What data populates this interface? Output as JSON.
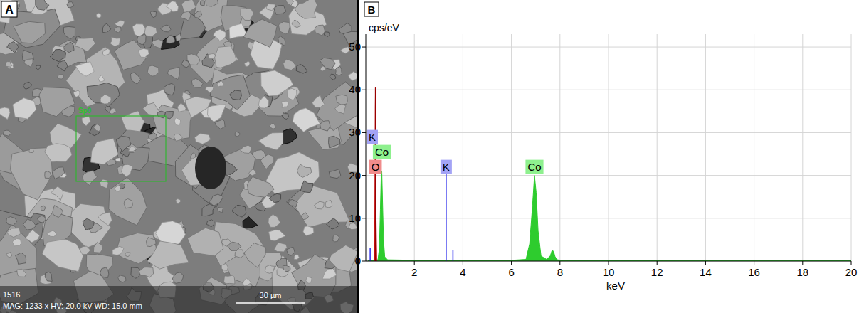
{
  "chart_data": {
    "type": "line",
    "panel_label": "B",
    "y_label": "cps/eV",
    "x_label": "keV",
    "xlim": [
      0,
      20
    ],
    "xticks": [
      2,
      4,
      6,
      8,
      10,
      12,
      14,
      16,
      18,
      20
    ],
    "ylim": [
      0,
      53
    ],
    "yticks": [
      0,
      10,
      20,
      30,
      40,
      50
    ],
    "grid": true,
    "series": [
      {
        "name": "Co",
        "color": "#2ecc2e",
        "type": "area",
        "x": [
          0.1,
          0.5,
          0.56,
          0.6,
          0.63,
          0.66,
          0.69,
          0.73,
          0.78,
          0.9,
          1.0,
          2.0,
          3.0,
          4.0,
          5.0,
          6.0,
          6.6,
          6.75,
          6.87,
          6.95,
          7.02,
          7.1,
          7.22,
          7.45,
          7.6,
          7.68,
          7.74,
          7.8,
          7.9,
          8.1,
          20
        ],
        "values": [
          0.2,
          0.3,
          3,
          12,
          19,
          21,
          14,
          5,
          1,
          0.3,
          0.3,
          0.2,
          0.2,
          0.2,
          0.2,
          0.2,
          0.4,
          4,
          13,
          20,
          16,
          7,
          1.2,
          0.4,
          1.2,
          2.6,
          2.2,
          1,
          0.3,
          0.2,
          0.1
        ]
      },
      {
        "name": "O",
        "color": "#cc1111",
        "type": "area",
        "x": [
          0.34,
          0.37,
          0.39,
          0.4,
          0.42,
          0.45
        ],
        "values": [
          0,
          10,
          36,
          40.5,
          12,
          0
        ]
      }
    ],
    "element_lines": [
      {
        "name": "K",
        "color": "#3a3aee",
        "x": [
          0.18,
          3.31,
          3.59
        ],
        "values": [
          3,
          22,
          2.5
        ]
      },
      {
        "name": "O",
        "color": "#990000",
        "x": [
          0.4
        ],
        "values": [
          40.5
        ]
      }
    ],
    "peak_labels": [
      {
        "text": "O",
        "x": 0.4,
        "color": "#f08c8c"
      },
      {
        "text": "Co",
        "x": 0.66,
        "color": "#8ef08e"
      },
      {
        "text": "K",
        "x": 0.18,
        "color": "#a3a3f5"
      },
      {
        "text": "K",
        "x": 3.31,
        "color": "#a3a3f5"
      },
      {
        "text": "Co",
        "x": 6.95,
        "color": "#8ef08e"
      }
    ]
  },
  "image_panel": {
    "panel_label": "A",
    "region_label": "Sp0",
    "sample_id": "1516",
    "info": "MAG: 1233 x  HV: 20.0 kV  WD: 15.0 mm",
    "scale_bar": "30 µm"
  }
}
